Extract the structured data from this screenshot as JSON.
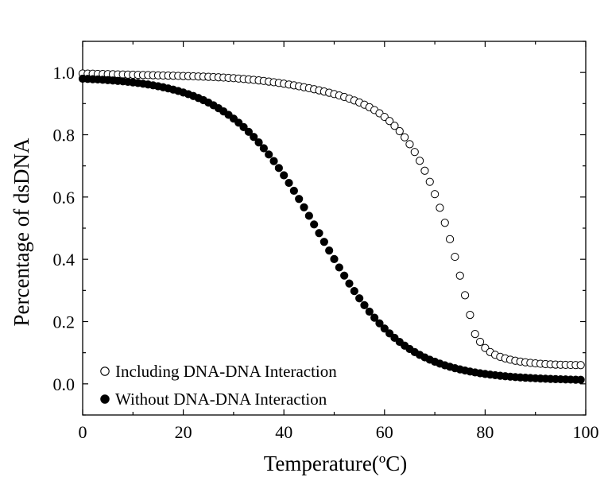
{
  "chart_data": {
    "type": "scatter",
    "title": "",
    "xlabel": "Temperature(ºC)",
    "ylabel": "Percentage of dsDNA",
    "xlim": [
      0,
      100
    ],
    "ylim": [
      -0.1,
      1.1
    ],
    "x_ticks": [
      "0",
      "20",
      "40",
      "60",
      "80",
      "100"
    ],
    "y_ticks": [
      "0.0",
      "0.2",
      "0.4",
      "0.6",
      "0.8",
      "1.0"
    ],
    "grid": false,
    "legend_position": "bottom-left",
    "series": [
      {
        "name": "Including DNA-DNA Interaction",
        "marker": "open-circle",
        "x": [
          0,
          1,
          2,
          3,
          4,
          5,
          6,
          7,
          8,
          9,
          10,
          11,
          12,
          13,
          14,
          15,
          16,
          17,
          18,
          19,
          20,
          21,
          22,
          23,
          24,
          25,
          26,
          27,
          28,
          29,
          30,
          31,
          32,
          33,
          34,
          35,
          36,
          37,
          38,
          39,
          40,
          41,
          42,
          43,
          44,
          45,
          46,
          47,
          48,
          49,
          50,
          51,
          52,
          53,
          54,
          55,
          56,
          57,
          58,
          59,
          60,
          61,
          62,
          63,
          64,
          65,
          66,
          67,
          68,
          69,
          70,
          71,
          72,
          73,
          74,
          75,
          76,
          77,
          78,
          79,
          80,
          81,
          82,
          83,
          84,
          85,
          86,
          87,
          88,
          89,
          90,
          91,
          92,
          93,
          94,
          95,
          96,
          97,
          98,
          99
        ],
        "y": [
          0.9967,
          0.9963,
          0.9959,
          0.9955,
          0.9951,
          0.9947,
          0.9943,
          0.9939,
          0.9935,
          0.9931,
          0.9927,
          0.9923,
          0.9919,
          0.9915,
          0.9911,
          0.9907,
          0.9903,
          0.9899,
          0.9895,
          0.9891,
          0.9887,
          0.9883,
          0.9878,
          0.9872,
          0.9867,
          0.986,
          0.9853,
          0.9845,
          0.9837,
          0.9827,
          0.9817,
          0.9805,
          0.9792,
          0.9778,
          0.9763,
          0.9746,
          0.9728,
          0.9708,
          0.9687,
          0.9664,
          0.964,
          0.9614,
          0.9586,
          0.9557,
          0.9527,
          0.9495,
          0.9461,
          0.9426,
          0.9389,
          0.9349,
          0.9307,
          0.9262,
          0.9213,
          0.916,
          0.9101,
          0.9037,
          0.8965,
          0.8884,
          0.8793,
          0.869,
          0.8573,
          0.844,
          0.8288,
          0.8115,
          0.7919,
          0.7697,
          0.7446,
          0.7163,
          0.6845,
          0.6489,
          0.6093,
          0.5655,
          0.5173,
          0.4647,
          0.4079,
          0.3475,
          0.2846,
          0.2213,
          0.1602,
          0.135,
          0.1153,
          0.1021,
          0.0932,
          0.0867,
          0.0817,
          0.0776,
          0.0743,
          0.0716,
          0.0693,
          0.0674,
          0.0658,
          0.0645,
          0.0634,
          0.0626,
          0.0619,
          0.0614,
          0.061,
          0.0607,
          0.0604,
          0.0602
        ]
      },
      {
        "name": "Without DNA-DNA Interaction",
        "marker": "filled-circle",
        "x": [
          0,
          1,
          2,
          3,
          4,
          5,
          6,
          7,
          8,
          9,
          10,
          11,
          12,
          13,
          14,
          15,
          16,
          17,
          18,
          19,
          20,
          21,
          22,
          23,
          24,
          25,
          26,
          27,
          28,
          29,
          30,
          31,
          32,
          33,
          34,
          35,
          36,
          37,
          38,
          39,
          40,
          41,
          42,
          43,
          44,
          45,
          46,
          47,
          48,
          49,
          50,
          51,
          52,
          53,
          54,
          55,
          56,
          57,
          58,
          59,
          60,
          61,
          62,
          63,
          64,
          65,
          66,
          67,
          68,
          69,
          70,
          71,
          72,
          73,
          74,
          75,
          76,
          77,
          78,
          79,
          80,
          81,
          82,
          83,
          84,
          85,
          86,
          87,
          88,
          89,
          90,
          91,
          92,
          93,
          94,
          95,
          96,
          97,
          98,
          99
        ],
        "y": [
          0.98,
          0.9793,
          0.9785,
          0.9776,
          0.9766,
          0.9755,
          0.9743,
          0.973,
          0.9715,
          0.9699,
          0.9681,
          0.9661,
          0.9639,
          0.9615,
          0.9588,
          0.9558,
          0.9526,
          0.9489,
          0.945,
          0.9406,
          0.9357,
          0.9304,
          0.9245,
          0.9181,
          0.911,
          0.9032,
          0.8946,
          0.8853,
          0.8751,
          0.864,
          0.8519,
          0.8388,
          0.8246,
          0.8094,
          0.793,
          0.7754,
          0.7566,
          0.7366,
          0.7155,
          0.6932,
          0.6698,
          0.6454,
          0.6201,
          0.5939,
          0.5671,
          0.5397,
          0.512,
          0.484,
          0.456,
          0.4282,
          0.4007,
          0.3738,
          0.3476,
          0.3222,
          0.2979,
          0.2747,
          0.2527,
          0.232,
          0.2125,
          0.1944,
          0.1776,
          0.1621,
          0.1478,
          0.1347,
          0.1228,
          0.1119,
          0.102,
          0.0931,
          0.0849,
          0.0776,
          0.071,
          0.065,
          0.0596,
          0.0547,
          0.0503,
          0.0464,
          0.0428,
          0.0396,
          0.0367,
          0.0341,
          0.0318,
          0.0297,
          0.0278,
          0.026,
          0.0245,
          0.0231,
          0.0218,
          0.0207,
          0.0197,
          0.0187,
          0.0179,
          0.0171,
          0.0164,
          0.0158,
          0.0152,
          0.0147,
          0.0142,
          0.0138,
          0.0134,
          0.013
        ]
      }
    ]
  }
}
